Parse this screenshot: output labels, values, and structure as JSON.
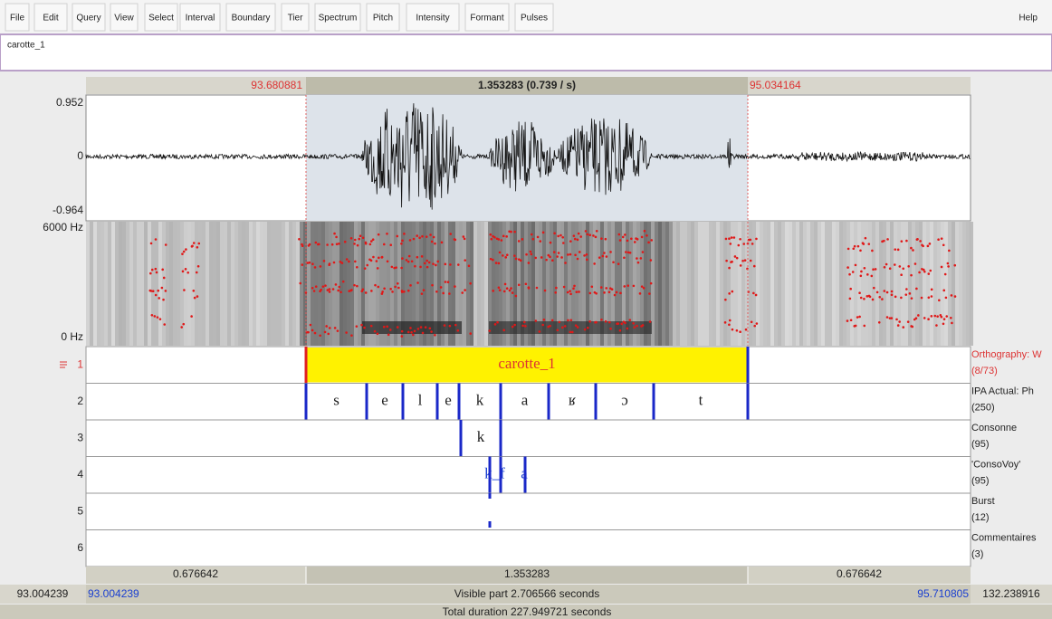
{
  "menu": [
    "File",
    "Edit",
    "Query",
    "View",
    "Select",
    "Interval",
    "Boundary",
    "Tier",
    "Spectrum",
    "Pitch",
    "Intensity",
    "Formant",
    "Pulses"
  ],
  "help": "Help",
  "text_field": "carotte_1",
  "selection": {
    "start": "93.680881",
    "duration": "1.353283 (0.739 / s)",
    "end": "95.034164"
  },
  "waveform": {
    "max": "0.952",
    "zero": "0",
    "min": "-0.964"
  },
  "spectrogram": {
    "max": "6000 Hz",
    "min": "0 Hz"
  },
  "tiers": [
    {
      "number": "1",
      "name": "Orthography: W",
      "count": "(8/73)",
      "intervals": [
        "carotte_1"
      ]
    },
    {
      "number": "2",
      "name": "IPA Actual: Ph",
      "count": "(250)",
      "intervals": [
        "s",
        "e",
        "l",
        "e",
        "k",
        "a",
        "ʁ",
        "ɔ",
        "t"
      ]
    },
    {
      "number": "3",
      "name": "Consonne",
      "count": "(95)",
      "intervals": [
        "k"
      ]
    },
    {
      "number": "4",
      "name": "'ConsoVoy'",
      "count": "(95)",
      "intervals": [
        "k_f",
        "a"
      ]
    },
    {
      "number": "5",
      "name": "Burst",
      "count": "(12)",
      "intervals": []
    },
    {
      "number": "6",
      "name": "Commentaires",
      "count": "(3)",
      "intervals": []
    }
  ],
  "durations": {
    "left": "0.676642",
    "middle": "1.353283",
    "right": "0.676642"
  },
  "window": {
    "start_total": "93.004239",
    "start_visible": "93.004239",
    "visible": "Visible part 2.706566 seconds",
    "end_visible": "95.710805",
    "end_total": "132.238916"
  },
  "total": "Total duration 227.949721 seconds"
}
